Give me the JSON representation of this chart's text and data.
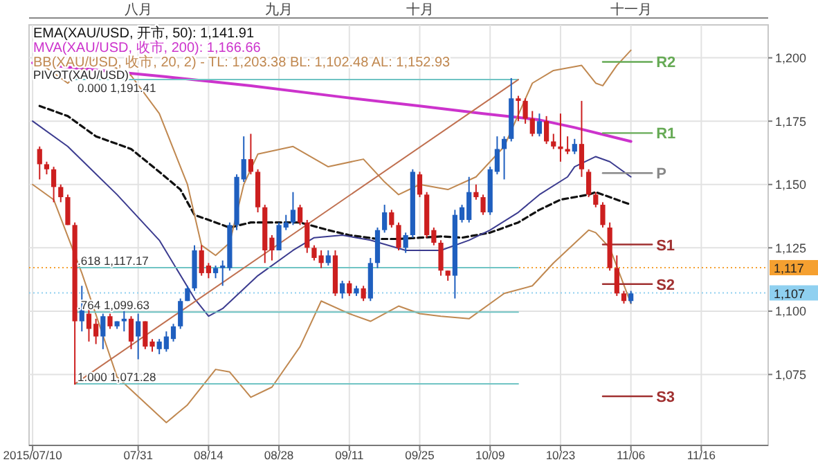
{
  "chart_data": {
    "type": "candlestick",
    "grid": true,
    "legend": "top left",
    "categories": [
      "2015/07/10",
      null,
      null,
      null,
      null,
      null,
      null,
      null,
      null,
      null,
      null,
      null,
      null,
      null,
      null,
      "07/31",
      null,
      null,
      null,
      null,
      null,
      null,
      null,
      null,
      null,
      "08/14",
      null,
      null,
      null,
      null,
      null,
      null,
      null,
      null,
      null,
      "08/28",
      null,
      null,
      null,
      null,
      null,
      null,
      null,
      null,
      null,
      "09/11",
      null,
      null,
      null,
      null,
      null,
      null,
      null,
      null,
      null,
      "09/25",
      null,
      null,
      null,
      null,
      null,
      null,
      null,
      null,
      null,
      "10/09",
      null,
      null,
      null,
      null,
      null,
      null,
      null,
      null,
      null,
      "10/23",
      null,
      null,
      null,
      null,
      null,
      null,
      null,
      null,
      null,
      "11/06",
      null,
      null,
      null,
      null,
      null,
      null,
      null,
      null,
      null,
      "11/16",
      null,
      null,
      null,
      null,
      null,
      null,
      null,
      null,
      null
    ],
    "ohlc": [
      null,
      [
        1164,
        1165,
        1152,
        1158
      ],
      [
        1158,
        1159,
        1154,
        1156
      ],
      [
        1156,
        1157,
        1143,
        1149
      ],
      [
        1149,
        1150,
        1143,
        1145
      ],
      [
        1145,
        1146,
        1134,
        1134
      ],
      [
        1134,
        1135,
        1071,
        1096
      ],
      [
        1096,
        1110,
        1092,
        1101
      ],
      [
        1099,
        1101,
        1088,
        1093
      ],
      [
        1095,
        1097,
        1087,
        1090
      ],
      [
        1090,
        1099,
        1085,
        1098
      ],
      [
        1098,
        1099,
        1093,
        1094
      ],
      [
        1094,
        1096,
        1093,
        1096
      ],
      [
        1096,
        1100,
        1092,
        1097
      ],
      [
        1097,
        1098,
        1085,
        1088
      ],
      [
        1090,
        1099,
        1081,
        1096
      ],
      [
        1096,
        1096,
        1085,
        1086
      ],
      [
        1088,
        1089,
        1084,
        1086
      ],
      [
        1085,
        1089,
        1083,
        1088
      ],
      [
        1085,
        1092,
        1084,
        1090
      ],
      [
        1089,
        1095,
        1088,
        1094
      ],
      [
        1094,
        1105,
        1093,
        1104
      ],
      [
        1104,
        1110,
        1104,
        1109
      ],
      [
        1109,
        1126,
        1108,
        1124
      ],
      [
        1124,
        1126,
        1114,
        1115
      ],
      [
        1118,
        1119,
        1113,
        1115
      ],
      [
        1115,
        1118,
        1113,
        1117
      ],
      [
        1117,
        1120,
        1110,
        1118
      ],
      [
        1117,
        1135,
        1116,
        1134
      ],
      [
        1134,
        1154,
        1132,
        1153
      ],
      [
        1152,
        1169,
        1151,
        1160
      ],
      [
        1160,
        1170,
        1154,
        1155
      ],
      [
        1155,
        1156,
        1139,
        1141
      ],
      [
        1141,
        1142,
        1119,
        1124
      ],
      [
        1129,
        1130,
        1120,
        1124
      ],
      [
        1124,
        1135,
        1124,
        1134
      ],
      [
        1133,
        1138,
        1132,
        1135
      ],
      [
        1135,
        1147,
        1134,
        1140
      ],
      [
        1141,
        1142,
        1134,
        1135
      ],
      [
        1135,
        1136,
        1123,
        1125
      ],
      [
        1125,
        1126,
        1120,
        1121
      ],
      [
        1122,
        1124,
        1117,
        1119
      ],
      [
        1119,
        1124,
        1118,
        1122
      ],
      [
        1122,
        1124,
        1106,
        1107
      ],
      [
        1107,
        1112,
        1105,
        1111
      ],
      [
        1111,
        1112,
        1106,
        1107
      ],
      [
        1107,
        1110,
        1106,
        1109
      ],
      [
        1109,
        1110,
        1104,
        1105
      ],
      [
        1105,
        1121,
        1104,
        1119
      ],
      [
        1119,
        1133,
        1117,
        1132
      ],
      [
        1132,
        1142,
        1131,
        1139
      ],
      [
        1139,
        1140,
        1133,
        1134
      ],
      [
        1134,
        1135,
        1124,
        1125
      ],
      [
        1125,
        1131,
        1123,
        1130
      ],
      [
        1130,
        1156,
        1129,
        1155
      ],
      [
        1154,
        1155,
        1145,
        1146
      ],
      [
        1146,
        1147,
        1129,
        1130
      ],
      [
        1132,
        1133,
        1126,
        1127
      ],
      [
        1127,
        1128,
        1114,
        1116
      ],
      [
        1116,
        1116,
        1112,
        1114
      ],
      [
        1114,
        1140,
        1105,
        1138
      ],
      [
        1136,
        1142,
        1135,
        1141
      ],
      [
        1136,
        1153,
        1135,
        1147
      ],
      [
        1147,
        1150,
        1144,
        1145
      ],
      [
        1145,
        1146,
        1138,
        1139
      ],
      [
        1139,
        1157,
        1138,
        1156
      ],
      [
        1155,
        1169,
        1154,
        1164
      ],
      [
        1164,
        1169,
        1152,
        1168
      ],
      [
        1168,
        1192,
        1167,
        1184
      ],
      [
        1184,
        1185,
        1175,
        1183
      ],
      [
        1183,
        1184,
        1174,
        1176
      ],
      [
        1176,
        1179,
        1169,
        1170
      ],
      [
        1170,
        1178,
        1169,
        1175
      ],
      [
        1175,
        1177,
        1166,
        1167
      ],
      [
        1167,
        1170,
        1164,
        1165
      ],
      [
        1165,
        1178,
        1159,
        1164
      ],
      [
        1164,
        1169,
        1162,
        1163
      ],
      [
        1163,
        1168,
        1162,
        1166
      ],
      [
        1166,
        1183,
        1153,
        1156
      ],
      [
        1155,
        1156,
        1145,
        1146
      ],
      [
        1146,
        1147,
        1141,
        1142
      ],
      [
        1142,
        1143,
        1133,
        1134
      ],
      [
        1133,
        1135,
        1116,
        1117
      ],
      [
        1117,
        1122,
        1106,
        1107
      ],
      [
        1107,
        1108,
        1103,
        1104
      ],
      [
        1104,
        1108,
        1103,
        1107
      ],
      null,
      null,
      null,
      null,
      null,
      null,
      null,
      null,
      null,
      null,
      null,
      null,
      null,
      null,
      null,
      null,
      null,
      null,
      null
    ],
    "ylim": [
      1047,
      1213
    ],
    "yticks": [
      {
        "value": 1075,
        "label": "1,075"
      },
      {
        "value": 1100,
        "label": "1,100"
      },
      {
        "value": 1125,
        "label": "1,125"
      },
      {
        "value": 1150,
        "label": "1,150"
      },
      {
        "value": 1175,
        "label": "1,175"
      },
      {
        "value": 1200,
        "label": "1,200"
      }
    ],
    "series": [
      {
        "name": "EMA(XAU/USD, 开市, 50): 1,141.91",
        "type": "line",
        "color": "#111111",
        "line_style": "dashed",
        "values": [
          null,
          1181,
          null,
          null,
          null,
          1177,
          null,
          null,
          null,
          1169,
          null,
          null,
          null,
          null,
          1164,
          null,
          null,
          null,
          1155,
          null,
          null,
          1148,
          null,
          1138,
          null,
          null,
          null,
          1134,
          1133,
          null,
          null,
          1135,
          null,
          null,
          null,
          1135,
          null,
          null,
          1135,
          null,
          null,
          null,
          1132,
          null,
          null,
          1130,
          null,
          null,
          null,
          1128.5,
          null,
          null,
          1128.5,
          null,
          null,
          1129,
          null,
          null,
          1129.5,
          null,
          null,
          1129,
          null,
          null,
          null,
          1131,
          null,
          null,
          null,
          1135,
          null,
          null,
          1140,
          null,
          null,
          1144,
          null,
          null,
          null,
          1146,
          1147,
          null,
          1145,
          null,
          null,
          1142,
          null,
          null,
          null,
          null,
          null,
          null,
          null,
          null,
          null,
          null,
          null,
          null,
          null,
          null,
          null,
          null,
          null,
          null,
          null
        ]
      },
      {
        "name": "MVA(XAU/USD, 收市, 200): 1,166.66",
        "type": "line",
        "color": "#cc33cc",
        "values": [
          1198,
          null,
          null,
          null,
          null,
          null,
          1196,
          null,
          null,
          null,
          null,
          null,
          null,
          null,
          null,
          null,
          null,
          null,
          null,
          1192.5,
          null,
          null,
          null,
          null,
          null,
          null,
          null,
          null,
          null,
          null,
          null,
          1189,
          null,
          null,
          null,
          null,
          null,
          null,
          null,
          null,
          null,
          null,
          null,
          null,
          1184.5,
          null,
          null,
          null,
          null,
          null,
          null,
          null,
          null,
          null,
          null,
          1181,
          null,
          null,
          null,
          null,
          null,
          null,
          null,
          null,
          1178,
          null,
          null,
          null,
          null,
          null,
          null,
          null,
          1175.5,
          null,
          null,
          null,
          null,
          1172.5,
          null,
          null,
          null,
          null,
          null,
          null,
          null,
          1167,
          null,
          null,
          null,
          null,
          null,
          null,
          null,
          null,
          null,
          null,
          null,
          null,
          null,
          null,
          null,
          null,
          null,
          null,
          null
        ]
      },
      {
        "name": "BB(XAU/USD, 收市, 20, 2) - TL: 1,203.38 BL: 1,102.48 AL: 1,152.93",
        "type": "line",
        "color": "#c08850",
        "values": [
          null,
          1198,
          null,
          null,
          null,
          1190,
          null,
          null,
          null,
          1200,
          null,
          null,
          null,
          null,
          1193,
          null,
          null,
          null,
          1178,
          null,
          null,
          null,
          1150,
          null,
          1126,
          null,
          1122,
          null,
          1127,
          null,
          1150,
          null,
          1162,
          null,
          null,
          null,
          null,
          1165,
          null,
          null,
          null,
          null,
          1157,
          null,
          null,
          null,
          null,
          1160,
          null,
          null,
          1151,
          null,
          1146,
          null,
          null,
          1150,
          null,
          null,
          null,
          1148,
          null,
          null,
          null,
          1153,
          null,
          null,
          null,
          1165,
          null,
          null,
          null,
          1190,
          null,
          null,
          1195,
          null,
          null,
          null,
          1197,
          null,
          1190,
          1189,
          null,
          1197,
          null,
          1203,
          null,
          null,
          null,
          null,
          null,
          null,
          null,
          null,
          null,
          null,
          null,
          null,
          null,
          null,
          null,
          null,
          null,
          null,
          null
        ]
      },
      {
        "type": "line",
        "color": "#3b3b8f",
        "values": [
          1175,
          null,
          null,
          null,
          null,
          1165,
          null,
          null,
          null,
          null,
          null,
          null,
          1146,
          null,
          null,
          null,
          null,
          null,
          1128,
          null,
          null,
          null,
          null,
          1105,
          null,
          1098,
          null,
          1101,
          null,
          null,
          null,
          null,
          1114,
          null,
          null,
          null,
          null,
          1124,
          null,
          null,
          1129,
          null,
          null,
          null,
          1130,
          null,
          null,
          null,
          1128,
          null,
          null,
          null,
          null,
          1124,
          null,
          1124,
          null,
          null,
          1124,
          null,
          null,
          null,
          1128,
          null,
          null,
          1132,
          null,
          null,
          null,
          1139,
          null,
          null,
          1146,
          null,
          null,
          null,
          1153,
          1157,
          null,
          null,
          1161,
          null,
          1159,
          null,
          null,
          1153,
          null,
          null,
          null,
          null,
          null,
          null,
          null,
          null,
          null,
          null,
          null,
          null,
          null,
          null,
          null,
          null,
          null,
          null,
          null
        ]
      },
      {
        "type": "line",
        "color": "#c08850",
        "values": [
          1150,
          null,
          null,
          1144,
          null,
          null,
          null,
          1115,
          null,
          null,
          null,
          null,
          1074,
          null,
          null,
          null,
          null,
          null,
          null,
          1056,
          null,
          null,
          1063,
          null,
          null,
          null,
          1077,
          null,
          1076,
          null,
          null,
          1066,
          null,
          null,
          1070,
          null,
          null,
          null,
          1086,
          null,
          null,
          1104,
          null,
          null,
          null,
          1099,
          null,
          null,
          1096,
          null,
          null,
          null,
          1102,
          null,
          null,
          1099,
          null,
          null,
          1098,
          null,
          null,
          null,
          1097,
          null,
          null,
          null,
          null,
          1107,
          null,
          null,
          null,
          1110,
          null,
          null,
          1119,
          null,
          null,
          null,
          null,
          1132,
          1131,
          null,
          1125,
          null,
          null,
          1103,
          null,
          null,
          null,
          null,
          null,
          null,
          null,
          null,
          null,
          null,
          null,
          null,
          null,
          null,
          null,
          null,
          null,
          null,
          null
        ]
      },
      {
        "type": "line",
        "color": "#70c4c4",
        "values": [
          null,
          null,
          null,
          null,
          null,
          null,
          1191.41,
          null,
          null,
          null,
          null,
          null,
          null,
          null,
          null,
          null,
          null,
          null,
          null,
          null,
          null,
          null,
          null,
          null,
          null,
          null,
          null,
          null,
          null,
          null,
          null,
          null,
          null,
          null,
          null,
          null,
          null,
          null,
          null,
          null,
          null,
          null,
          null,
          null,
          null,
          null,
          null,
          null,
          null,
          null,
          null,
          null,
          null,
          null,
          null,
          null,
          null,
          null,
          null,
          null,
          null,
          null,
          null,
          null,
          null,
          null,
          null,
          null,
          null,
          1191.41,
          null,
          null,
          null,
          null,
          null,
          null,
          null,
          null,
          null,
          null,
          null,
          null,
          null,
          null,
          null,
          null,
          null,
          null,
          null,
          null,
          null,
          null,
          null,
          null,
          null,
          null,
          null,
          null,
          null,
          null,
          null,
          null,
          null,
          null,
          null
        ]
      },
      {
        "type": "line",
        "color": "#70c4c4",
        "values": [
          null,
          null,
          null,
          null,
          null,
          null,
          1117.17,
          null,
          null,
          null,
          null,
          null,
          null,
          null,
          null,
          null,
          null,
          null,
          null,
          null,
          null,
          null,
          null,
          null,
          null,
          null,
          null,
          null,
          null,
          null,
          null,
          null,
          null,
          null,
          null,
          null,
          null,
          null,
          null,
          null,
          null,
          null,
          null,
          null,
          null,
          null,
          null,
          null,
          null,
          null,
          null,
          null,
          null,
          null,
          null,
          null,
          null,
          null,
          null,
          null,
          null,
          null,
          null,
          null,
          null,
          null,
          null,
          null,
          null,
          1117.17,
          null,
          null,
          null,
          null,
          null,
          null,
          null,
          null,
          null,
          null,
          null,
          null,
          null,
          null,
          null,
          null,
          null,
          null,
          null,
          null,
          null,
          null,
          null,
          null,
          null,
          null,
          null,
          null,
          null,
          null,
          null,
          null,
          null,
          null,
          null
        ]
      },
      {
        "type": "line",
        "color": "#70c4c4",
        "values": [
          null,
          null,
          null,
          null,
          null,
          null,
          1099.63,
          null,
          null,
          null,
          null,
          null,
          null,
          null,
          null,
          null,
          null,
          null,
          null,
          null,
          null,
          null,
          null,
          null,
          null,
          null,
          null,
          null,
          null,
          null,
          null,
          null,
          null,
          null,
          null,
          null,
          null,
          null,
          null,
          null,
          null,
          null,
          null,
          null,
          null,
          null,
          null,
          null,
          null,
          null,
          null,
          null,
          null,
          null,
          null,
          null,
          null,
          null,
          null,
          null,
          null,
          null,
          null,
          null,
          null,
          null,
          null,
          null,
          null,
          1099.63,
          null,
          null,
          null,
          null,
          null,
          null,
          null,
          null,
          null,
          null,
          null,
          null,
          null,
          null,
          null,
          null,
          null,
          null,
          null,
          null,
          null,
          null,
          null,
          null,
          null,
          null,
          null,
          null,
          null,
          null,
          null,
          null,
          null,
          null,
          null
        ]
      },
      {
        "type": "line",
        "color": "#70c4c4",
        "values": [
          null,
          null,
          null,
          null,
          null,
          null,
          1071.28,
          null,
          null,
          null,
          null,
          null,
          null,
          null,
          null,
          null,
          null,
          null,
          null,
          null,
          null,
          null,
          null,
          null,
          null,
          null,
          null,
          null,
          null,
          null,
          null,
          null,
          null,
          null,
          null,
          null,
          null,
          null,
          null,
          null,
          null,
          null,
          null,
          null,
          null,
          null,
          null,
          null,
          null,
          null,
          null,
          null,
          null,
          null,
          null,
          null,
          null,
          null,
          null,
          null,
          null,
          null,
          null,
          null,
          null,
          null,
          null,
          null,
          null,
          1071.28,
          null,
          null,
          null,
          null,
          null,
          null,
          null,
          null,
          null,
          null,
          null,
          null,
          null,
          null,
          null,
          null,
          null,
          null,
          null,
          null,
          null,
          null,
          null,
          null,
          null,
          null,
          null,
          null,
          null,
          null,
          null,
          null,
          null,
          null,
          null
        ]
      },
      {
        "type": "line",
        "color": "#c07050",
        "values": [
          null,
          null,
          null,
          null,
          null,
          null,
          1071.28,
          null,
          null,
          null,
          null,
          null,
          null,
          null,
          null,
          null,
          null,
          null,
          null,
          null,
          null,
          null,
          null,
          null,
          null,
          null,
          null,
          null,
          null,
          null,
          null,
          null,
          null,
          null,
          null,
          null,
          null,
          null,
          null,
          null,
          null,
          null,
          null,
          null,
          null,
          null,
          null,
          null,
          null,
          null,
          null,
          null,
          null,
          null,
          null,
          null,
          null,
          null,
          null,
          null,
          null,
          null,
          null,
          null,
          null,
          null,
          null,
          null,
          null,
          1191.41,
          null,
          null,
          null,
          null,
          null,
          null,
          null,
          null,
          null,
          null,
          null,
          null,
          null,
          null,
          null,
          null,
          null,
          null,
          null,
          null,
          null,
          null,
          null,
          null,
          null,
          null,
          null,
          null,
          null,
          null,
          null,
          null,
          null,
          null,
          null
        ]
      },
      {
        "name": "R2",
        "type": "line",
        "color": "#66aa55",
        "values": [
          null,
          null,
          null,
          null,
          null,
          null,
          null,
          null,
          null,
          null,
          null,
          null,
          null,
          null,
          null,
          null,
          null,
          null,
          null,
          null,
          null,
          null,
          null,
          null,
          null,
          null,
          null,
          null,
          null,
          null,
          null,
          null,
          null,
          null,
          null,
          null,
          null,
          null,
          null,
          null,
          null,
          null,
          null,
          null,
          null,
          null,
          null,
          null,
          null,
          null,
          null,
          null,
          null,
          null,
          null,
          null,
          null,
          null,
          null,
          null,
          null,
          null,
          null,
          null,
          null,
          null,
          null,
          null,
          null,
          null,
          null,
          null,
          null,
          null,
          null,
          null,
          null,
          null,
          null,
          null,
          null,
          1198.4,
          null,
          null,
          null,
          null,
          null,
          null,
          1198.4,
          null,
          null,
          null,
          null,
          null,
          null,
          null,
          null,
          null,
          null,
          null,
          null,
          null,
          null,
          null,
          null
        ]
      },
      {
        "name": "R1",
        "type": "line",
        "color": "#66aa55",
        "values": [
          null,
          null,
          null,
          null,
          null,
          null,
          null,
          null,
          null,
          null,
          null,
          null,
          null,
          null,
          null,
          null,
          null,
          null,
          null,
          null,
          null,
          null,
          null,
          null,
          null,
          null,
          null,
          null,
          null,
          null,
          null,
          null,
          null,
          null,
          null,
          null,
          null,
          null,
          null,
          null,
          null,
          null,
          null,
          null,
          null,
          null,
          null,
          null,
          null,
          null,
          null,
          null,
          null,
          null,
          null,
          null,
          null,
          null,
          null,
          null,
          null,
          null,
          null,
          null,
          null,
          null,
          null,
          null,
          null,
          null,
          null,
          null,
          null,
          null,
          null,
          null,
          null,
          null,
          null,
          null,
          null,
          1170.3,
          null,
          null,
          null,
          null,
          null,
          null,
          1170.3,
          null,
          null,
          null,
          null,
          null,
          null,
          null,
          null,
          null,
          null,
          null,
          null,
          null,
          null,
          null,
          null
        ]
      },
      {
        "name": "P",
        "type": "line",
        "color": "#888888",
        "values": [
          null,
          null,
          null,
          null,
          null,
          null,
          null,
          null,
          null,
          null,
          null,
          null,
          null,
          null,
          null,
          null,
          null,
          null,
          null,
          null,
          null,
          null,
          null,
          null,
          null,
          null,
          null,
          null,
          null,
          null,
          null,
          null,
          null,
          null,
          null,
          null,
          null,
          null,
          null,
          null,
          null,
          null,
          null,
          null,
          null,
          null,
          null,
          null,
          null,
          null,
          null,
          null,
          null,
          null,
          null,
          null,
          null,
          null,
          null,
          null,
          null,
          null,
          null,
          null,
          null,
          null,
          null,
          null,
          null,
          null,
          null,
          null,
          null,
          null,
          null,
          null,
          null,
          null,
          null,
          null,
          null,
          1154.5,
          null,
          null,
          null,
          null,
          null,
          null,
          1154.5,
          null,
          null,
          null,
          null,
          null,
          null,
          null,
          null,
          null,
          null,
          null,
          null,
          null,
          null,
          null,
          null
        ]
      },
      {
        "name": "S1",
        "type": "line",
        "color": "#a03030",
        "values": [
          null,
          null,
          null,
          null,
          null,
          null,
          null,
          null,
          null,
          null,
          null,
          null,
          null,
          null,
          null,
          null,
          null,
          null,
          null,
          null,
          null,
          null,
          null,
          null,
          null,
          null,
          null,
          null,
          null,
          null,
          null,
          null,
          null,
          null,
          null,
          null,
          null,
          null,
          null,
          null,
          null,
          null,
          null,
          null,
          null,
          null,
          null,
          null,
          null,
          null,
          null,
          null,
          null,
          null,
          null,
          null,
          null,
          null,
          null,
          null,
          null,
          null,
          null,
          null,
          null,
          null,
          null,
          null,
          null,
          null,
          null,
          null,
          null,
          null,
          null,
          null,
          null,
          null,
          null,
          null,
          null,
          1126.3,
          null,
          null,
          null,
          null,
          null,
          null,
          1126.3,
          null,
          null,
          null,
          null,
          null,
          null,
          null,
          null,
          null,
          null,
          null,
          null,
          null,
          null,
          null,
          null
        ]
      },
      {
        "name": "S2",
        "type": "line",
        "color": "#a03030",
        "values": [
          null,
          null,
          null,
          null,
          null,
          null,
          null,
          null,
          null,
          null,
          null,
          null,
          null,
          null,
          null,
          null,
          null,
          null,
          null,
          null,
          null,
          null,
          null,
          null,
          null,
          null,
          null,
          null,
          null,
          null,
          null,
          null,
          null,
          null,
          null,
          null,
          null,
          null,
          null,
          null,
          null,
          null,
          null,
          null,
          null,
          null,
          null,
          null,
          null,
          null,
          null,
          null,
          null,
          null,
          null,
          null,
          null,
          null,
          null,
          null,
          null,
          null,
          null,
          null,
          null,
          null,
          null,
          null,
          null,
          null,
          null,
          null,
          null,
          null,
          null,
          null,
          null,
          null,
          null,
          null,
          null,
          1110.7,
          null,
          null,
          null,
          null,
          null,
          null,
          1110.7,
          null,
          null,
          null,
          null,
          null,
          null,
          null,
          null,
          null,
          null,
          null,
          null,
          null,
          null,
          null,
          null
        ]
      },
      {
        "name": "S3",
        "type": "line",
        "color": "#a03030",
        "values": [
          null,
          null,
          null,
          null,
          null,
          null,
          null,
          null,
          null,
          null,
          null,
          null,
          null,
          null,
          null,
          null,
          null,
          null,
          null,
          null,
          null,
          null,
          null,
          null,
          null,
          null,
          null,
          null,
          null,
          null,
          null,
          null,
          null,
          null,
          null,
          null,
          null,
          null,
          null,
          null,
          null,
          null,
          null,
          null,
          null,
          null,
          null,
          null,
          null,
          null,
          null,
          null,
          null,
          null,
          null,
          null,
          null,
          null,
          null,
          null,
          null,
          null,
          null,
          null,
          null,
          null,
          null,
          null,
          null,
          null,
          null,
          null,
          null,
          null,
          null,
          null,
          null,
          null,
          null,
          null,
          null,
          1066.4,
          null,
          null,
          null,
          null,
          null,
          null,
          1066.4,
          null,
          null,
          null,
          null,
          null,
          null,
          null,
          null,
          null,
          null,
          null,
          null,
          null,
          null,
          null,
          null
        ]
      }
    ],
    "annotations": [
      "八月",
      "九月",
      "十月",
      "十一月",
      "PIVOT(XAU/USD)",
      {
        "text": "0.000 1,191.41",
        "y": 1191.41
      },
      {
        "text": ".618 1,117.17",
        "y": 1117.17
      },
      {
        "text": ".764 1,099.63",
        "y": 1099.63
      },
      {
        "text": "1.000 1,071.28",
        "y": 1071.28
      }
    ],
    "ref_lines": [
      {
        "axis": "y",
        "value": 1117.17,
        "label": "1,117",
        "color": "#f5a030",
        "line_style": "dotted"
      },
      {
        "axis": "y",
        "value": 1107.2,
        "label": "1,107",
        "color": "#8fd0f0",
        "line_style": "dotted"
      }
    ]
  }
}
